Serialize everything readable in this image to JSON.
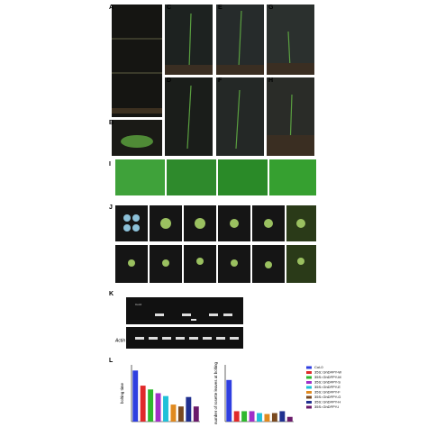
{
  "panels": [
    "A",
    "B",
    "C",
    "D",
    "E",
    "F",
    "G",
    "H",
    "I",
    "J",
    "K",
    "L"
  ],
  "gel": {
    "lane_label": "Col-0",
    "row_label": "Actin"
  },
  "legend": {
    "names": [
      "Col-0",
      "35S::GhDFPY-W",
      "35S::GhDFPY-M",
      "35S::GhDFPY-S",
      "35S::GhDFPY-E",
      "35S::GhDFPY-F",
      "35S::GhDFPY-G",
      "35S::GhDFPY-H",
      "35S::GhDFPY-I"
    ],
    "colors": [
      "#2f3fe0",
      "#e02a2a",
      "#2fb82f",
      "#a030c8",
      "#20c0d8",
      "#e08a20",
      "#7a4a20",
      "#203090",
      "#6a1a6a"
    ]
  },
  "chart_data": [
    {
      "type": "bar",
      "y_label": "bolting time",
      "values": [
        54,
        38,
        34,
        30,
        27,
        18,
        16,
        26,
        16
      ],
      "ylim": [
        0,
        60
      ]
    },
    {
      "type": "bar",
      "y_label": "number of rosette leaves at bolting",
      "values": [
        44,
        11,
        11,
        11,
        9,
        8,
        9,
        11,
        5
      ],
      "ylim": [
        0,
        60
      ]
    }
  ]
}
